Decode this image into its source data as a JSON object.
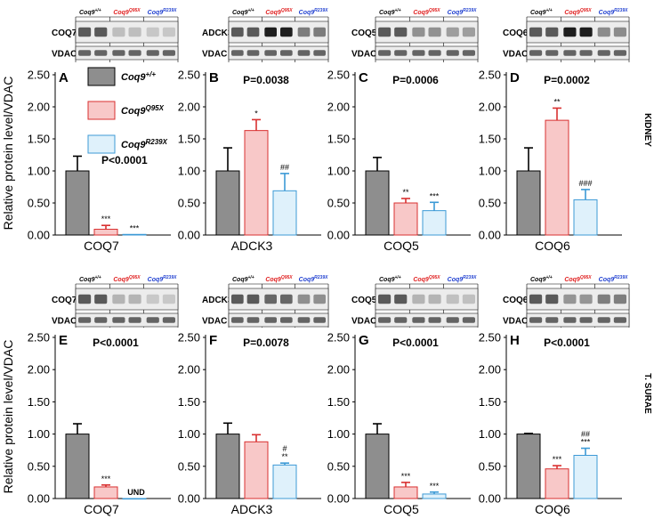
{
  "colors": {
    "wt": "#8e8e8e",
    "q95x": "#f8c8c8",
    "q95x_edge": "#d93030",
    "r239x": "#dff1fb",
    "r239x_edge": "#3c9ad6",
    "text_red": "#e02020",
    "text_blue": "#1f3fd0"
  },
  "legend": {
    "wt": "Coq9",
    "wt_sup": "+/+",
    "q95x": "Coq9",
    "q95x_sup": "Q95X",
    "r239x": "Coq9",
    "r239x_sup": "R239X"
  },
  "ylabel": "Relative protein level/VDAC",
  "ylim": [
    0,
    2.5
  ],
  "yticks": [
    "0.00",
    "0.50",
    "1.00",
    "1.50",
    "2.00",
    "2.50"
  ],
  "rows": [
    {
      "tissue": "KIDNEY"
    },
    {
      "tissue": "T. SURAE"
    }
  ],
  "blot_genotypes": {
    "wt": "Coq9+/+",
    "q95x": "Coq9Q95X",
    "r239x": "Coq9R239X"
  },
  "chart_data": [
    {
      "type": "bar",
      "panel": "A",
      "tissue": "KIDNEY",
      "protein": "COQ7",
      "blot_labels": [
        "COQ7",
        "VDAC"
      ],
      "pvalue": "P<0.0001",
      "categories": [
        "Coq9+/+",
        "Coq9Q95X",
        "Coq9R239X"
      ],
      "values": [
        1.0,
        0.09,
        0.01
      ],
      "errors": [
        0.23,
        0.06,
        0.0
      ],
      "significance": [
        "",
        "***",
        "***"
      ],
      "ylim": [
        0,
        2.5
      ]
    },
    {
      "type": "bar",
      "panel": "B",
      "tissue": "KIDNEY",
      "protein": "ADCK3",
      "blot_labels": [
        "ADCK3",
        "VDAC"
      ],
      "pvalue": "P=0.0038",
      "categories": [
        "Coq9+/+",
        "Coq9Q95X",
        "Coq9R239X"
      ],
      "values": [
        1.0,
        1.63,
        0.69
      ],
      "errors": [
        0.36,
        0.17,
        0.27
      ],
      "significance": [
        "",
        "*",
        "##"
      ],
      "ylim": [
        0,
        2.5
      ]
    },
    {
      "type": "bar",
      "panel": "C",
      "tissue": "KIDNEY",
      "protein": "COQ5",
      "blot_labels": [
        "COQ5",
        "VDAC"
      ],
      "pvalue": "P=0.0006",
      "categories": [
        "Coq9+/+",
        "Coq9Q95X",
        "Coq9R239X"
      ],
      "values": [
        1.0,
        0.5,
        0.38
      ],
      "errors": [
        0.21,
        0.07,
        0.13
      ],
      "significance": [
        "",
        "**",
        "***"
      ],
      "ylim": [
        0,
        2.5
      ]
    },
    {
      "type": "bar",
      "panel": "D",
      "tissue": "KIDNEY",
      "protein": "COQ6",
      "blot_labels": [
        "COQ6",
        "VDAC"
      ],
      "pvalue": "P=0.0002",
      "categories": [
        "Coq9+/+",
        "Coq9Q95X",
        "Coq9R239X"
      ],
      "values": [
        1.0,
        1.79,
        0.55
      ],
      "errors": [
        0.36,
        0.19,
        0.16
      ],
      "significance": [
        "",
        "**",
        "###"
      ],
      "ylim": [
        0,
        2.5
      ]
    },
    {
      "type": "bar",
      "panel": "E",
      "tissue": "T. SURAE",
      "protein": "COQ7",
      "blot_labels": [
        "COQ7",
        "VDAC"
      ],
      "pvalue": "P<0.0001",
      "categories": [
        "Coq9+/+",
        "Coq9Q95X",
        "Coq9R239X"
      ],
      "values": [
        1.0,
        0.18,
        0.0
      ],
      "errors": [
        0.16,
        0.03,
        0.0
      ],
      "significance": [
        "",
        "***",
        "UND"
      ],
      "ylim": [
        0,
        2.5
      ]
    },
    {
      "type": "bar",
      "panel": "F",
      "tissue": "T. SURAE",
      "protein": "ADCK3",
      "blot_labels": [
        "ADCK3",
        "VDAC"
      ],
      "pvalue": "P=0.0078",
      "categories": [
        "Coq9+/+",
        "Coq9Q95X",
        "Coq9R239X"
      ],
      "values": [
        1.0,
        0.88,
        0.52
      ],
      "errors": [
        0.17,
        0.11,
        0.03
      ],
      "significance": [
        "",
        "",
        "#\n**"
      ],
      "ylim": [
        0,
        2.5
      ]
    },
    {
      "type": "bar",
      "panel": "G",
      "tissue": "T. SURAE",
      "protein": "COQ5",
      "blot_labels": [
        "COQ5",
        "VDAC"
      ],
      "pvalue": "P<0.0001",
      "categories": [
        "Coq9+/+",
        "Coq9Q95X",
        "Coq9R239X"
      ],
      "values": [
        1.0,
        0.18,
        0.07
      ],
      "errors": [
        0.16,
        0.07,
        0.03
      ],
      "significance": [
        "",
        "***",
        "***"
      ],
      "ylim": [
        0,
        2.5
      ]
    },
    {
      "type": "bar",
      "panel": "H",
      "tissue": "T. SURAE",
      "protein": "COQ6",
      "blot_labels": [
        "COQ6",
        "VDAC"
      ],
      "pvalue": "P<0.0001",
      "categories": [
        "Coq9+/+",
        "Coq9Q95X",
        "Coq9R239X"
      ],
      "values": [
        1.0,
        0.46,
        0.67
      ],
      "errors": [
        0.01,
        0.05,
        0.11
      ],
      "significance": [
        "",
        "***",
        "##\n***"
      ],
      "ylim": [
        0,
        2.5
      ]
    }
  ]
}
